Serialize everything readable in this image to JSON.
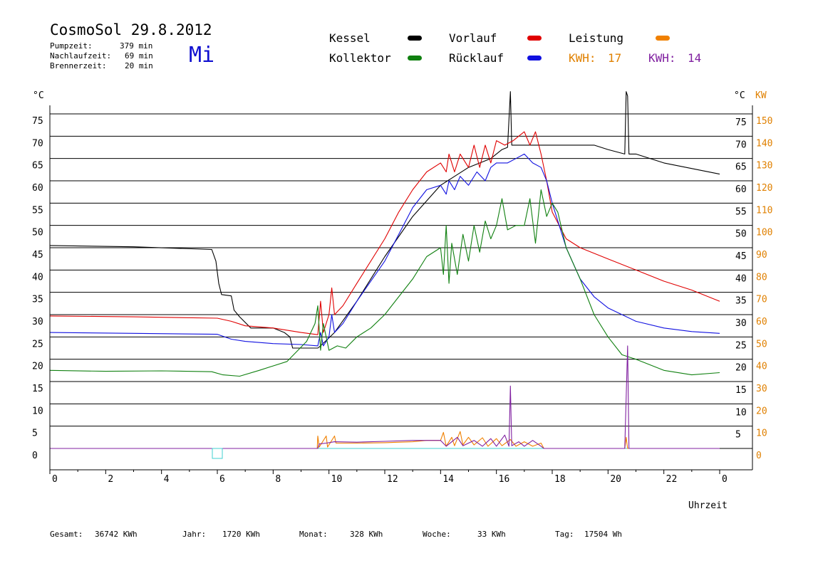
{
  "header": {
    "title": "CosmoSol 29.8.2012",
    "weekday": "Mi",
    "stats": [
      {
        "label": "Pumpzeit:",
        "value": "379 min"
      },
      {
        "label": "Nachlaufzeit:",
        "value": "69 min"
      },
      {
        "label": "Brennerzeit:",
        "value": "20 min"
      }
    ]
  },
  "legend": {
    "items": [
      {
        "label": "Kessel",
        "color": "#000000"
      },
      {
        "label": "Vorlauf",
        "color": "#e00000"
      },
      {
        "label": "Leistung",
        "color": "#f08000"
      },
      {
        "label": "Kollektor",
        "color": "#108010"
      },
      {
        "label": "Rücklauf",
        "color": "#1010e0"
      }
    ],
    "kwh1": {
      "label": "KWH:",
      "value": "17",
      "color": "#e08000"
    },
    "kwh2": {
      "label": "KWH:",
      "value": "14",
      "color": "#8020a0"
    }
  },
  "footer": [
    {
      "label": "Gesamt:",
      "value": "36742 KWh"
    },
    {
      "label": "Jahr:",
      "value": "1720 KWh"
    },
    {
      "label": "Monat:",
      "value": "328 KWh"
    },
    {
      "label": "Woche:",
      "value": "33 KWh"
    },
    {
      "label": "Tag:",
      "value": "17504 Wh"
    }
  ],
  "chart_data": {
    "type": "line",
    "xlabel": "Uhrzeit",
    "ylabel_left": "°C",
    "ylabel_right_temp": "°C",
    "ylabel_right_power": "KW",
    "xlim": [
      0,
      24
    ],
    "ylim": [
      0,
      75
    ],
    "x_ticks": [
      "0",
      "2",
      "4",
      "6",
      "8",
      "10",
      "12",
      "14",
      "16",
      "18",
      "20",
      "22",
      "0"
    ],
    "y_ticks_left": [
      "0",
      "5",
      "10",
      "15",
      "20",
      "25",
      "30",
      "35",
      "40",
      "45",
      "50",
      "55",
      "60",
      "65",
      "70",
      "75"
    ],
    "y_ticks_right": [
      "",
      "5",
      "10",
      "15",
      "20",
      "25",
      "30",
      "35",
      "40",
      "45",
      "50",
      "55",
      "60",
      "65",
      "70",
      "75"
    ],
    "kw_ticks": [
      "0",
      "10",
      "20",
      "30",
      "40",
      "50",
      "60",
      "70",
      "80",
      "90",
      "100",
      "110",
      "120",
      "130",
      "140",
      "150"
    ],
    "grid": "horizontal",
    "colors": {
      "cyan_baseline": "#40d0d0",
      "marker": "#40d0d0"
    },
    "series": [
      {
        "name": "Kessel",
        "color": "#000000",
        "points": [
          [
            0,
            45.5
          ],
          [
            3,
            45.2
          ],
          [
            5.8,
            44.6
          ],
          [
            5.95,
            42
          ],
          [
            6.05,
            37
          ],
          [
            6.15,
            34.5
          ],
          [
            6.5,
            34.2
          ],
          [
            6.6,
            31
          ],
          [
            6.8,
            29.5
          ],
          [
            7.2,
            27
          ],
          [
            8,
            27
          ],
          [
            8.4,
            26
          ],
          [
            8.6,
            25
          ],
          [
            8.7,
            22.5
          ],
          [
            9.6,
            22.5
          ],
          [
            9.7,
            23
          ],
          [
            10.2,
            26
          ],
          [
            11,
            33
          ],
          [
            12,
            43
          ],
          [
            13,
            52
          ],
          [
            14,
            59
          ],
          [
            15,
            63
          ],
          [
            15.8,
            65
          ],
          [
            16.2,
            67
          ],
          [
            16.4,
            67.5
          ],
          [
            16.5,
            80
          ],
          [
            16.55,
            68
          ],
          [
            17,
            68
          ],
          [
            17.5,
            68
          ],
          [
            18,
            68
          ],
          [
            19.5,
            68
          ],
          [
            20,
            67
          ],
          [
            20.6,
            66
          ],
          [
            20.65,
            80
          ],
          [
            20.7,
            79
          ],
          [
            20.75,
            66
          ],
          [
            21,
            66
          ],
          [
            22,
            64
          ],
          [
            24,
            61.5
          ]
        ]
      },
      {
        "name": "Vorlauf",
        "color": "#e00000",
        "points": [
          [
            0,
            29.7
          ],
          [
            3,
            29.5
          ],
          [
            6,
            29.2
          ],
          [
            6.5,
            28.5
          ],
          [
            7,
            27.5
          ],
          [
            8,
            27
          ],
          [
            9,
            26
          ],
          [
            9.6,
            25.5
          ],
          [
            9.7,
            33
          ],
          [
            9.8,
            26
          ],
          [
            10,
            30
          ],
          [
            10.1,
            36
          ],
          [
            10.2,
            30
          ],
          [
            10.5,
            32
          ],
          [
            11,
            37
          ],
          [
            12,
            47
          ],
          [
            12.5,
            53
          ],
          [
            13,
            58
          ],
          [
            13.5,
            62
          ],
          [
            14,
            64
          ],
          [
            14.2,
            62
          ],
          [
            14.3,
            66
          ],
          [
            14.5,
            62
          ],
          [
            14.7,
            66
          ],
          [
            15,
            63
          ],
          [
            15.2,
            68
          ],
          [
            15.4,
            63
          ],
          [
            15.6,
            68
          ],
          [
            15.8,
            64
          ],
          [
            16,
            69
          ],
          [
            16.3,
            68
          ],
          [
            16.6,
            69
          ],
          [
            16.8,
            70
          ],
          [
            17,
            71
          ],
          [
            17.2,
            68
          ],
          [
            17.4,
            71
          ],
          [
            17.6,
            66
          ],
          [
            17.8,
            60
          ],
          [
            18,
            53
          ],
          [
            18.5,
            47
          ],
          [
            19,
            45
          ],
          [
            20,
            42.5
          ],
          [
            21,
            40
          ],
          [
            22,
            37.5
          ],
          [
            23,
            35.5
          ],
          [
            24,
            33
          ]
        ]
      },
      {
        "name": "Rücklauf",
        "color": "#1010e0",
        "points": [
          [
            0,
            26
          ],
          [
            3,
            25.8
          ],
          [
            6,
            25.6
          ],
          [
            6.5,
            24.5
          ],
          [
            7,
            24
          ],
          [
            8,
            23.5
          ],
          [
            9,
            23.3
          ],
          [
            9.6,
            23
          ],
          [
            9.7,
            26
          ],
          [
            9.8,
            23
          ],
          [
            10,
            25
          ],
          [
            10.1,
            30
          ],
          [
            10.2,
            26
          ],
          [
            10.5,
            28
          ],
          [
            11,
            33
          ],
          [
            12,
            42
          ],
          [
            12.5,
            48
          ],
          [
            13,
            54
          ],
          [
            13.5,
            58
          ],
          [
            14,
            59
          ],
          [
            14.2,
            57
          ],
          [
            14.3,
            60
          ],
          [
            14.5,
            58
          ],
          [
            14.7,
            61
          ],
          [
            15,
            59
          ],
          [
            15.3,
            62
          ],
          [
            15.6,
            60
          ],
          [
            15.8,
            63
          ],
          [
            16,
            64
          ],
          [
            16.4,
            64
          ],
          [
            16.7,
            65
          ],
          [
            17,
            66
          ],
          [
            17.3,
            64
          ],
          [
            17.6,
            63
          ],
          [
            17.8,
            60
          ],
          [
            18,
            55
          ],
          [
            18.5,
            45
          ],
          [
            19,
            38
          ],
          [
            19.5,
            34
          ],
          [
            20,
            31.5
          ],
          [
            20.5,
            30
          ],
          [
            21,
            28.5
          ],
          [
            22,
            27
          ],
          [
            23,
            26.2
          ],
          [
            24,
            25.8
          ]
        ]
      },
      {
        "name": "Kollektor",
        "color": "#108010",
        "points": [
          [
            0,
            17.5
          ],
          [
            2,
            17.3
          ],
          [
            4,
            17.4
          ],
          [
            5.8,
            17.2
          ],
          [
            6.2,
            16.5
          ],
          [
            6.8,
            16.2
          ],
          [
            7.5,
            17.5
          ],
          [
            8.5,
            19.5
          ],
          [
            9.2,
            24
          ],
          [
            9.5,
            28
          ],
          [
            9.6,
            32
          ],
          [
            9.7,
            22
          ],
          [
            9.8,
            28
          ],
          [
            10,
            22
          ],
          [
            10.3,
            23
          ],
          [
            10.6,
            22.5
          ],
          [
            11,
            25
          ],
          [
            11.5,
            27
          ],
          [
            12,
            30
          ],
          [
            12.5,
            34
          ],
          [
            13,
            38
          ],
          [
            13.5,
            43
          ],
          [
            14,
            45
          ],
          [
            14.1,
            39
          ],
          [
            14.2,
            50
          ],
          [
            14.3,
            37
          ],
          [
            14.4,
            46
          ],
          [
            14.6,
            39
          ],
          [
            14.8,
            48
          ],
          [
            15,
            42
          ],
          [
            15.2,
            50
          ],
          [
            15.4,
            44
          ],
          [
            15.6,
            51
          ],
          [
            15.8,
            47
          ],
          [
            16,
            50
          ],
          [
            16.2,
            56
          ],
          [
            16.4,
            49
          ],
          [
            16.7,
            50
          ],
          [
            17,
            50
          ],
          [
            17.2,
            56
          ],
          [
            17.4,
            46
          ],
          [
            17.6,
            58
          ],
          [
            17.8,
            52
          ],
          [
            18,
            55
          ],
          [
            18.2,
            53
          ],
          [
            18.5,
            45
          ],
          [
            19,
            38
          ],
          [
            19.5,
            30
          ],
          [
            20,
            25
          ],
          [
            20.5,
            21
          ],
          [
            21,
            20
          ],
          [
            22,
            17.5
          ],
          [
            23,
            16.5
          ],
          [
            24,
            17
          ]
        ]
      },
      {
        "name": "Leistung",
        "color": "#f08000",
        "points": [
          [
            0,
            0
          ],
          [
            9.58,
            0
          ],
          [
            9.6,
            2.8
          ],
          [
            9.65,
            0.3
          ],
          [
            9.9,
            2.8
          ],
          [
            9.95,
            0.3
          ],
          [
            10.2,
            2.8
          ],
          [
            10.25,
            1.2
          ],
          [
            11,
            1.2
          ],
          [
            12,
            1.3
          ],
          [
            13,
            1.5
          ],
          [
            13.5,
            1.8
          ],
          [
            14,
            1.8
          ],
          [
            14.1,
            3.6
          ],
          [
            14.2,
            0.5
          ],
          [
            14.4,
            2.5
          ],
          [
            14.5,
            0.6
          ],
          [
            14.7,
            3.8
          ],
          [
            14.8,
            0.8
          ],
          [
            15,
            2.5
          ],
          [
            15.2,
            0.8
          ],
          [
            15.5,
            2.4
          ],
          [
            15.7,
            0.5
          ],
          [
            16,
            2.2
          ],
          [
            16.2,
            0.6
          ],
          [
            16.5,
            2
          ],
          [
            16.7,
            0.5
          ],
          [
            17,
            1.5
          ],
          [
            17.3,
            0.5
          ],
          [
            17.6,
            1.2
          ],
          [
            17.7,
            0
          ],
          [
            20.6,
            0
          ],
          [
            20.65,
            2.5
          ],
          [
            20.7,
            0
          ],
          [
            24,
            0
          ]
        ]
      },
      {
        "name": "KWH",
        "color": "#8020a0",
        "points": [
          [
            0,
            0
          ],
          [
            9.6,
            0
          ],
          [
            9.65,
            1
          ],
          [
            9.9,
            1.2
          ],
          [
            10.2,
            1.5
          ],
          [
            11,
            1.4
          ],
          [
            12,
            1.6
          ],
          [
            13,
            1.8
          ],
          [
            14,
            1.8
          ],
          [
            14.2,
            0.5
          ],
          [
            14.6,
            2.5
          ],
          [
            14.8,
            0.6
          ],
          [
            15.2,
            1.8
          ],
          [
            15.5,
            0.5
          ],
          [
            15.8,
            2.2
          ],
          [
            16,
            0.5
          ],
          [
            16.3,
            3
          ],
          [
            16.45,
            0.5
          ],
          [
            16.5,
            14
          ],
          [
            16.55,
            0.6
          ],
          [
            16.8,
            1.5
          ],
          [
            17,
            0.5
          ],
          [
            17.3,
            1.8
          ],
          [
            17.6,
            0.5
          ],
          [
            17.7,
            0
          ],
          [
            20.6,
            0
          ],
          [
            20.7,
            23
          ],
          [
            20.75,
            0
          ],
          [
            24,
            0
          ]
        ]
      }
    ]
  }
}
